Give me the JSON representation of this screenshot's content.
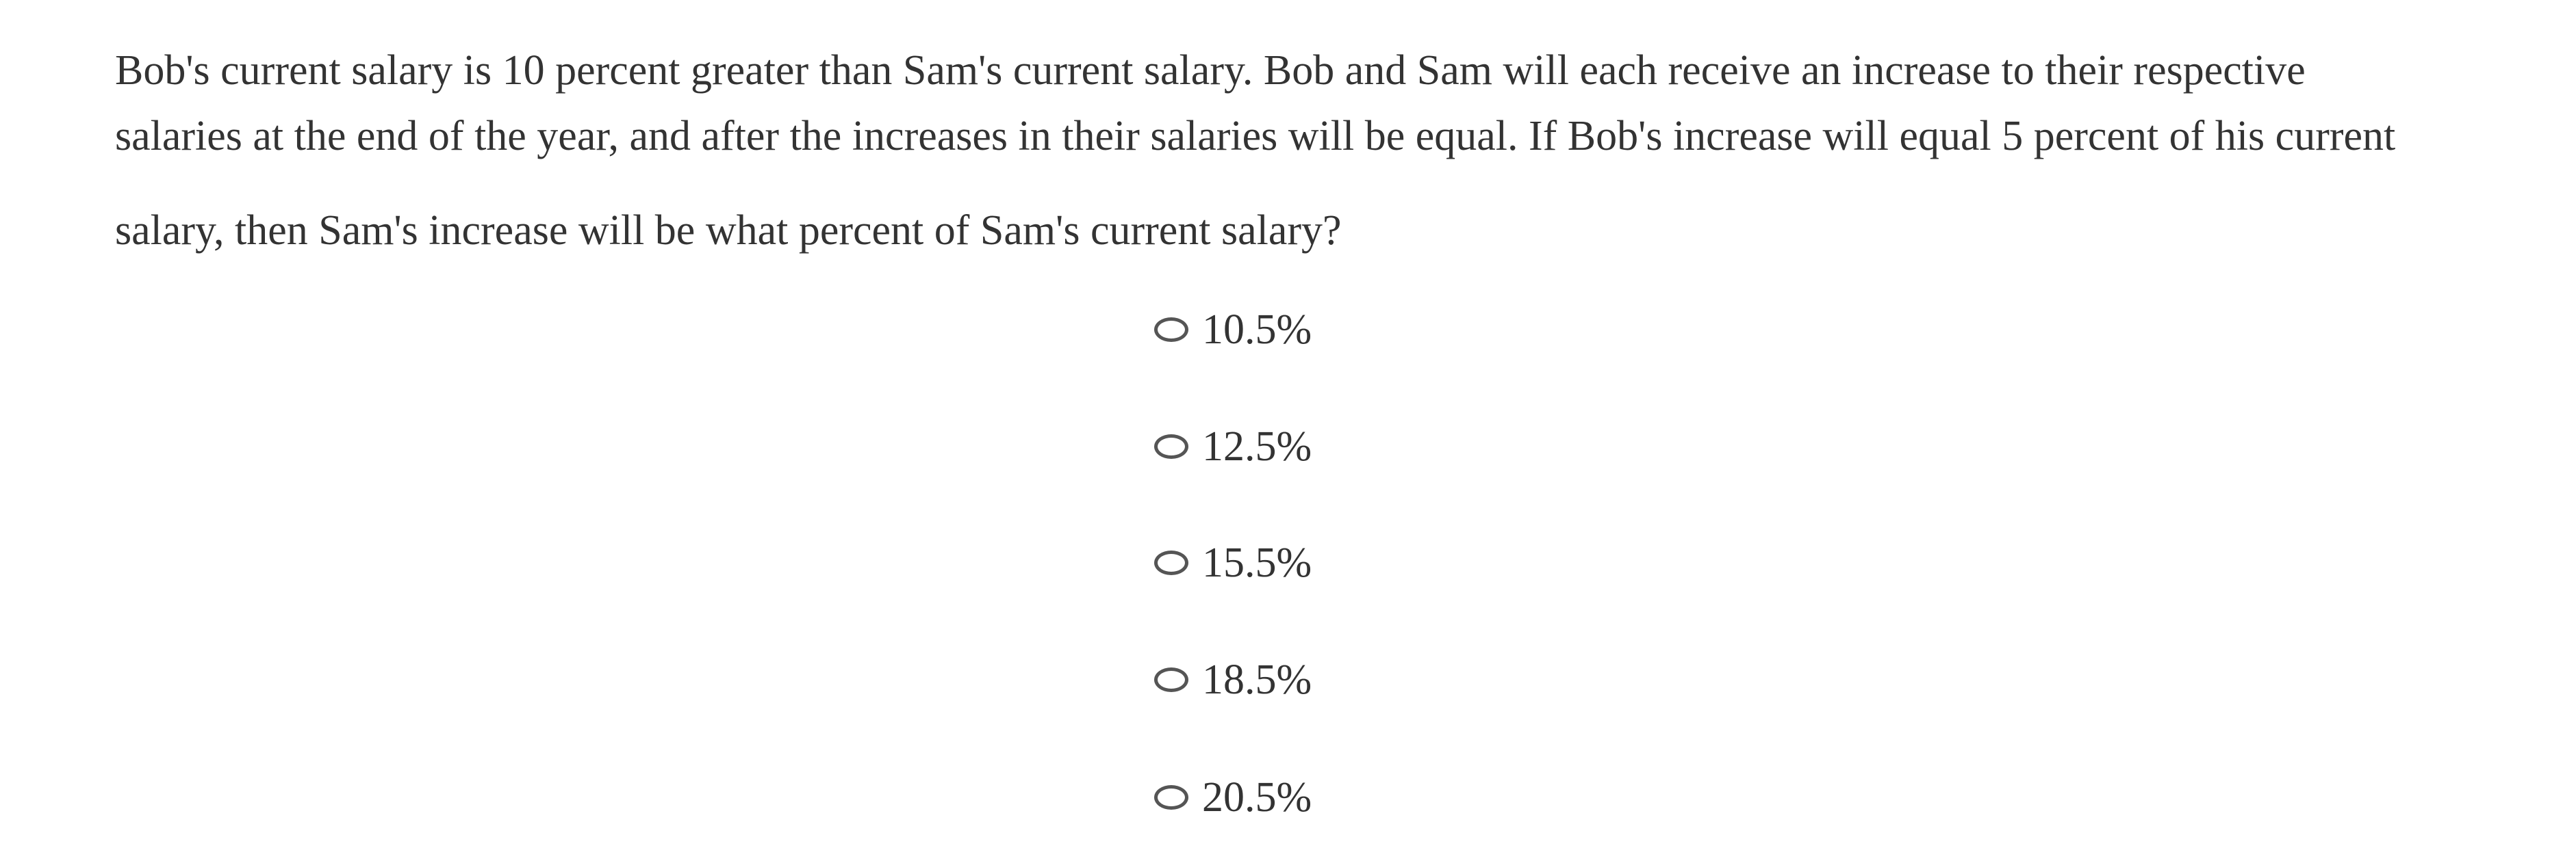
{
  "question": {
    "lines": [
      "Bob's current salary is 10 percent greater than Sam's current salary. Bob and Sam will each receive an increase to their respective",
      "salaries at the end of the year, and after the increases in their salaries will be equal. If Bob's increase will equal 5 percent of his current",
      "salary, then Sam's increase will be what percent of Sam's current salary?"
    ]
  },
  "options": [
    {
      "label": "10.5%",
      "selected": false
    },
    {
      "label": "12.5%",
      "selected": false
    },
    {
      "label": "15.5%",
      "selected": false
    },
    {
      "label": "18.5%",
      "selected": false
    },
    {
      "label": "20.5%",
      "selected": false
    }
  ]
}
